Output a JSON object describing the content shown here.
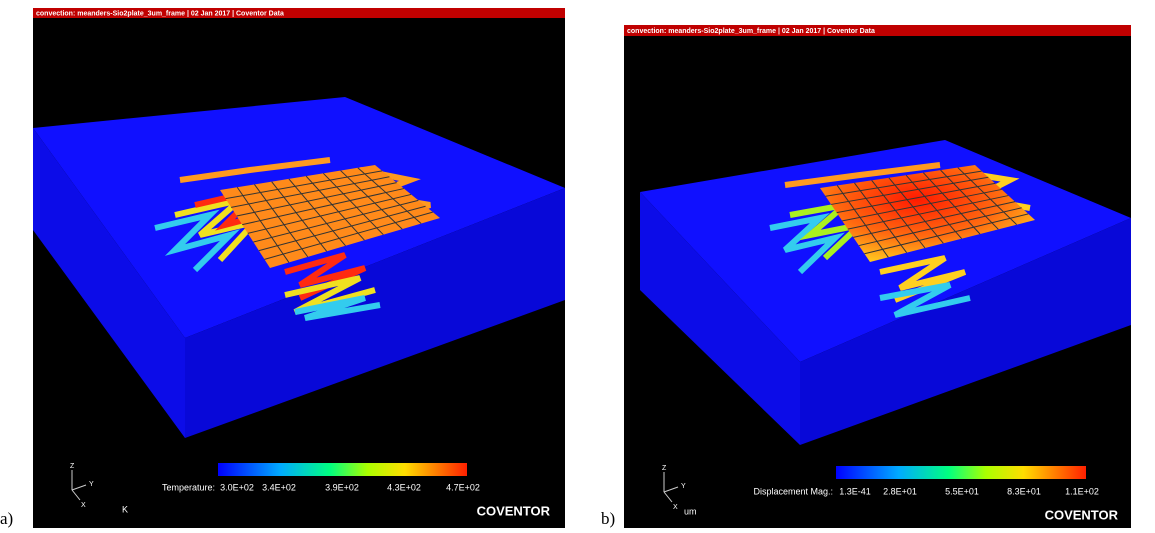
{
  "panels": [
    {
      "label": "a)",
      "header": "convection: meanders-Sio2plate_3um_frame | 02 Jan 2017 | Coventor Data",
      "legend": {
        "title": "Temperature:",
        "ticks": [
          "3.0E+02",
          "3.4E+02",
          "3.9E+02",
          "4.3E+02",
          "4.7E+02"
        ],
        "unit": "K"
      },
      "axes": [
        "Z",
        "Y",
        "X"
      ],
      "brand": "COVENTOR"
    },
    {
      "label": "b)",
      "header": "convection: meanders-Sio2plate_3um_frame | 02 Jan 2017 | Coventor Data",
      "legend": {
        "title": "Displacement Mag.:",
        "ticks": [
          "1.3E-41",
          "2.8E+01",
          "5.5E+01",
          "8.3E+01",
          "1.1E+02"
        ],
        "unit": "um"
      },
      "axes": [
        "Z",
        "Y",
        "X"
      ],
      "brand": "COVENTOR"
    }
  ]
}
